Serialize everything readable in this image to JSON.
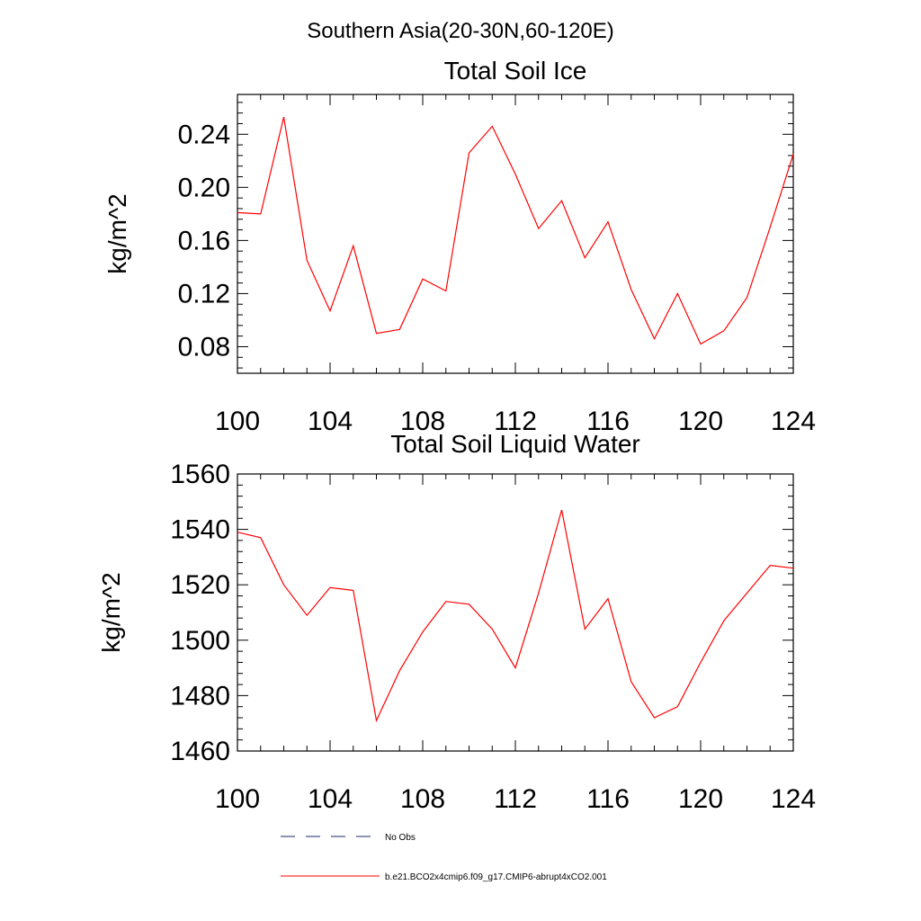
{
  "page_title": "Southern Asia(20-30N,60-120E)",
  "chart_data": [
    {
      "type": "line",
      "title": "Total Soil Ice",
      "ylabel": "kg/m^2",
      "xlabel": "",
      "xlim": [
        100,
        124
      ],
      "ylim": [
        0.06,
        0.27
      ],
      "xticks": [
        "100",
        "104",
        "108",
        "112",
        "116",
        "120",
        "124"
      ],
      "yticks": [
        "0.08",
        "0.12",
        "0.16",
        "0.20",
        "0.24"
      ],
      "series": [
        {
          "name": "b.e21.BCO2x4cmip6.f09_g17.CMIP6-abrupt4xCO2.001",
          "color": "#ff0000",
          "x": [
            100,
            101,
            102,
            103,
            104,
            105,
            106,
            107,
            108,
            109,
            110,
            111,
            112,
            113,
            114,
            115,
            116,
            117,
            118,
            119,
            120,
            121,
            122,
            123,
            124
          ],
          "values": [
            0.181,
            0.18,
            0.253,
            0.145,
            0.107,
            0.156,
            0.09,
            0.093,
            0.131,
            0.122,
            0.226,
            0.246,
            0.21,
            0.169,
            0.19,
            0.147,
            0.174,
            0.123,
            0.086,
            0.12,
            0.082,
            0.092,
            0.117,
            0.17,
            0.225
          ]
        }
      ]
    },
    {
      "type": "line",
      "title": "Total Soil Liquid Water",
      "ylabel": "kg/m^2",
      "xlabel": "",
      "xlim": [
        100,
        124
      ],
      "ylim": [
        1460,
        1560
      ],
      "xticks": [
        "100",
        "104",
        "108",
        "112",
        "116",
        "120",
        "124"
      ],
      "yticks": [
        "1460",
        "1480",
        "1500",
        "1520",
        "1540",
        "1560"
      ],
      "series": [
        {
          "name": "b.e21.BCO2x4cmip6.f09_g17.CMIP6-abrupt4xCO2.001",
          "color": "#ff0000",
          "x": [
            100,
            101,
            102,
            103,
            104,
            105,
            106,
            107,
            108,
            109,
            110,
            111,
            112,
            113,
            114,
            115,
            116,
            117,
            118,
            119,
            120,
            121,
            122,
            123,
            124
          ],
          "values": [
            1539,
            1537,
            1520,
            1509,
            1519,
            1518,
            1471,
            1489,
            1503,
            1514,
            1513,
            1504,
            1490,
            1517,
            1547,
            1504,
            1515,
            1485,
            1472,
            1476,
            1492,
            1507,
            1517,
            1527,
            1526
          ]
        }
      ]
    }
  ],
  "legend": [
    {
      "label": "No Obs",
      "color": "#1a2a6c",
      "style": "dashed"
    },
    {
      "label": "b.e21.BCO2x4cmip6.f09_g17.CMIP6-abrupt4xCO2.001",
      "color": "#ff0000",
      "style": "solid"
    }
  ]
}
